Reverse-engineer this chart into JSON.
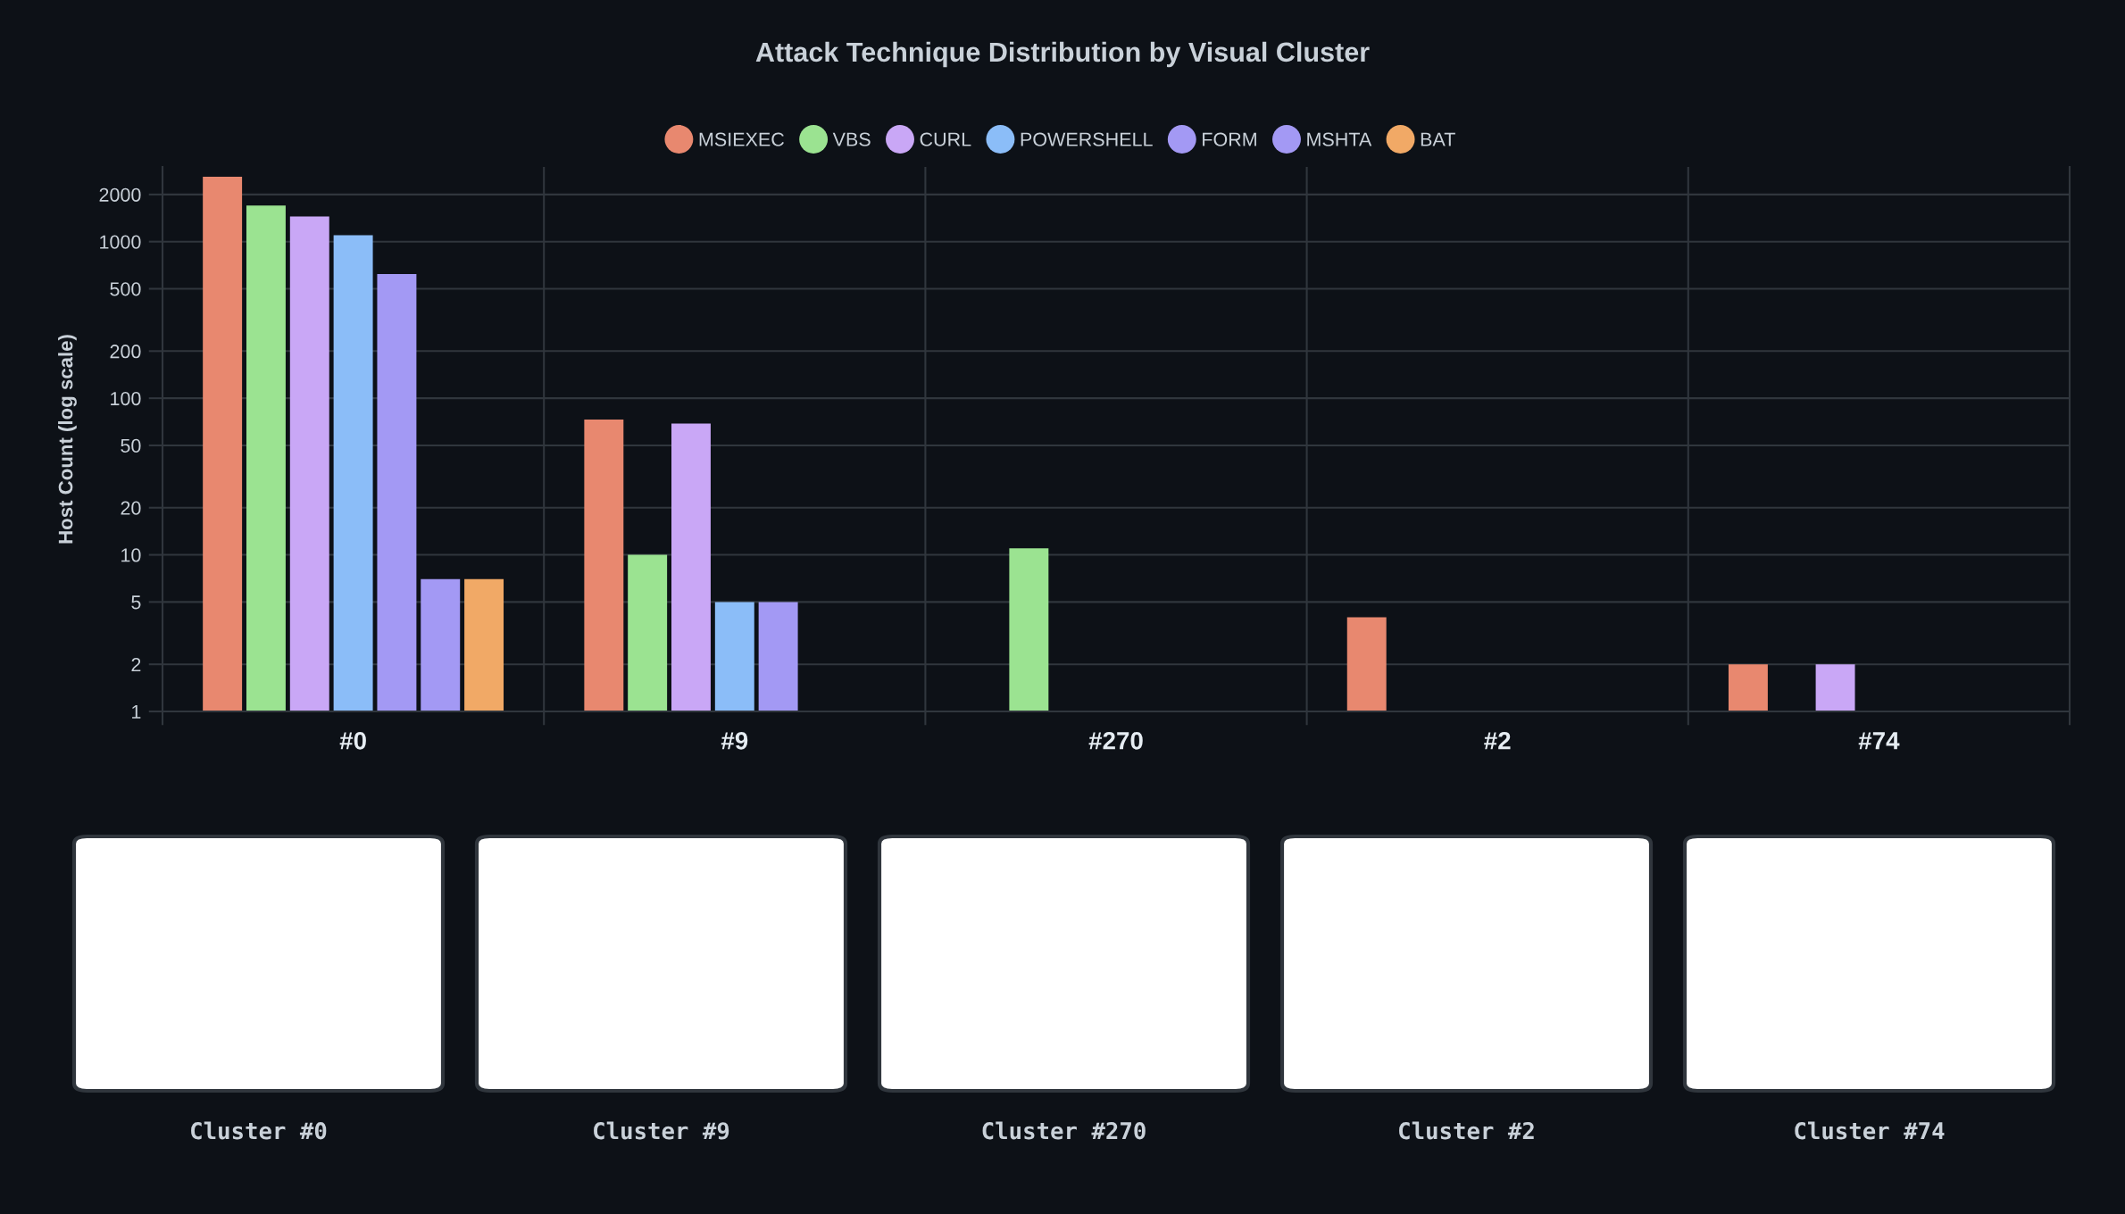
{
  "chart_data": {
    "type": "bar",
    "title": "Attack Technique Distribution by Visual Cluster",
    "ylabel": "Host Count (log scale)",
    "categories": [
      "#0",
      "#9",
      "#270",
      "#2",
      "#74"
    ],
    "series": [
      {
        "name": "MSIEXEC",
        "color": "#e8886f",
        "values": [
          2600,
          73,
          null,
          4,
          2
        ]
      },
      {
        "name": "VBS",
        "color": "#9be391",
        "values": [
          1700,
          10,
          11,
          null,
          null
        ]
      },
      {
        "name": "CURL",
        "color": "#c9a7f6",
        "values": [
          1450,
          69,
          null,
          null,
          2
        ]
      },
      {
        "name": "POWERSHELL",
        "color": "#8bbdf8",
        "values": [
          1100,
          5,
          null,
          null,
          null
        ]
      },
      {
        "name": "FORM",
        "color": "#a399f4",
        "values": [
          620,
          5,
          null,
          null,
          null
        ]
      },
      {
        "name": "MSHTA",
        "color": "#a399f4",
        "values": [
          7,
          null,
          null,
          null,
          null
        ]
      },
      {
        "name": "BAT",
        "color": "#f1a966",
        "values": [
          7,
          null,
          null,
          null,
          null
        ]
      }
    ],
    "log": true,
    "ylim": [
      1,
      3000
    ],
    "yticks": [
      1,
      2,
      5,
      10,
      20,
      50,
      100,
      200,
      500,
      1000,
      2000
    ],
    "grid": true,
    "legend": "top",
    "annotations": [
      "Cluster #0",
      "Cluster #9",
      "Cluster #270",
      "Cluster #2",
      "Cluster #74"
    ]
  }
}
